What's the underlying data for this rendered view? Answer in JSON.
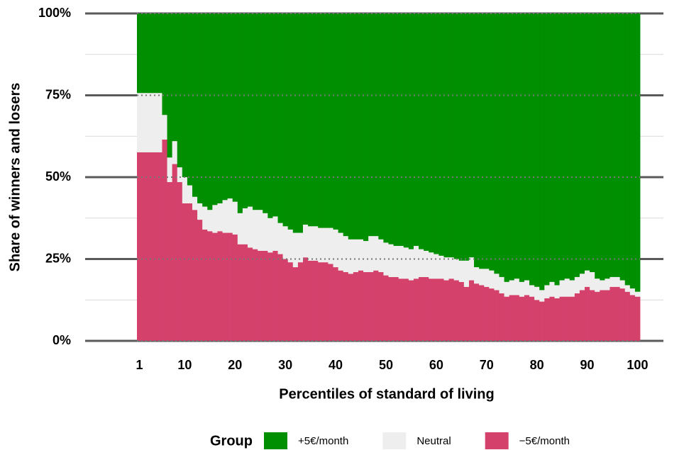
{
  "chart_data": {
    "type": "stacked_bar",
    "x_label": "Percentiles of standard of living",
    "y_label": "Share of winners and losers",
    "legend_title": "Group",
    "x": [
      1,
      2,
      3,
      4,
      5,
      6,
      7,
      8,
      9,
      10,
      11,
      12,
      13,
      14,
      15,
      16,
      17,
      18,
      19,
      20,
      21,
      22,
      23,
      24,
      25,
      26,
      27,
      28,
      29,
      30,
      31,
      32,
      33,
      34,
      35,
      36,
      37,
      38,
      39,
      40,
      41,
      42,
      43,
      44,
      45,
      46,
      47,
      48,
      49,
      50,
      51,
      52,
      53,
      54,
      55,
      56,
      57,
      58,
      59,
      60,
      61,
      62,
      63,
      64,
      65,
      66,
      67,
      68,
      69,
      70,
      71,
      72,
      73,
      74,
      75,
      76,
      77,
      78,
      79,
      80,
      81,
      82,
      83,
      84,
      85,
      86,
      87,
      88,
      89,
      90,
      91,
      92,
      93,
      94,
      95,
      96,
      97,
      98,
      99,
      100
    ],
    "xlim": [
      0.5,
      100.5
    ],
    "xticks": [
      1,
      10,
      20,
      30,
      40,
      50,
      60,
      70,
      80,
      90,
      100
    ],
    "ylim": [
      0,
      100
    ],
    "yticks": [
      {
        "value": 0,
        "label": "0%"
      },
      {
        "value": 25,
        "label": "25%"
      },
      {
        "value": 50,
        "label": "50%"
      },
      {
        "value": 75,
        "label": "75%"
      },
      {
        "value": 100,
        "label": "100%"
      }
    ],
    "grid": true,
    "series": [
      {
        "name": "+5€/month",
        "color": "#008f00",
        "values": [
          24.3,
          24.3,
          24.3,
          24.3,
          24.3,
          31,
          44,
          39,
          47,
          50,
          52.5,
          56,
          58,
          59,
          60,
          58.5,
          58,
          57,
          56.5,
          57.5,
          61,
          59.5,
          59,
          60,
          60,
          61,
          62.5,
          62,
          64,
          65,
          66,
          67,
          67,
          64.5,
          65,
          65,
          65.5,
          65.5,
          65.5,
          66,
          67,
          68,
          69,
          69,
          69,
          69.5,
          68,
          68,
          69,
          70,
          70.5,
          71,
          71,
          71.5,
          72,
          71,
          72,
          72.5,
          73,
          73.5,
          74,
          74.5,
          74.5,
          75,
          75.5,
          75.5,
          74.5,
          77.5,
          78,
          78,
          78.5,
          79.5,
          80.5,
          82,
          81.5,
          81,
          82,
          81.5,
          83,
          83.5,
          84.5,
          83,
          82,
          83,
          81.5,
          81,
          81.5,
          80.5,
          79.5,
          78.5,
          79,
          81,
          81.5,
          81,
          80.5,
          80.5,
          81.5,
          83,
          84,
          85
        ]
      },
      {
        "name": "Neutral",
        "color": "#eeeeee",
        "values": [
          18.1,
          18.1,
          18.1,
          18.1,
          18.1,
          7.5,
          7.5,
          7,
          4.5,
          8,
          5.5,
          4,
          5,
          7,
          6.5,
          8.5,
          8.5,
          10,
          10.5,
          10,
          9.5,
          11,
          12.5,
          12,
          12.5,
          11.5,
          10.5,
          10.5,
          9.5,
          10,
          10,
          10.5,
          9,
          10,
          10.5,
          10.5,
          10.5,
          10.5,
          11,
          11.5,
          11.5,
          11,
          10.5,
          10,
          9.5,
          9.5,
          11,
          10.5,
          10,
          10,
          10,
          9.5,
          10,
          9.5,
          9.5,
          10,
          8.5,
          8,
          8,
          7.5,
          7,
          7,
          6.5,
          6.5,
          6.5,
          8,
          7,
          5,
          5,
          5.5,
          5.5,
          5,
          5,
          4.5,
          4.5,
          5,
          4.5,
          4.5,
          3.5,
          4,
          3.5,
          4,
          4.5,
          4,
          5,
          5.5,
          5,
          5,
          5,
          5,
          5.5,
          4,
          3,
          3.5,
          3,
          3,
          2.5,
          2,
          2,
          1.5
        ]
      },
      {
        "name": "−5€/month",
        "color": "#d4416b",
        "values": [
          57.6,
          57.6,
          57.6,
          57.6,
          57.6,
          61.5,
          48.5,
          54,
          48.5,
          42,
          42,
          40,
          37,
          34,
          33.5,
          33,
          33.5,
          33,
          33,
          32.5,
          29.5,
          29.5,
          28.5,
          28,
          27.5,
          27.5,
          27,
          27.5,
          26.5,
          25,
          24,
          22.5,
          24,
          25.5,
          24.5,
          24.5,
          24,
          24,
          23.5,
          22.5,
          21.5,
          21,
          20.5,
          21,
          21.5,
          21,
          21,
          21.5,
          21,
          20,
          19.5,
          19.5,
          19,
          19,
          18.5,
          19,
          19.5,
          19.5,
          19,
          19,
          19,
          18.5,
          19,
          18.5,
          18,
          16.5,
          18.5,
          17.5,
          17,
          16.5,
          16,
          15.5,
          14.5,
          13.5,
          14,
          14,
          13.5,
          14,
          13.5,
          12.5,
          12,
          13,
          13.5,
          13,
          13.5,
          13.5,
          13.5,
          14.5,
          15.5,
          16.5,
          15.5,
          15,
          15.5,
          15.5,
          16.5,
          16.5,
          16,
          15,
          14,
          13.5
        ]
      }
    ]
  }
}
